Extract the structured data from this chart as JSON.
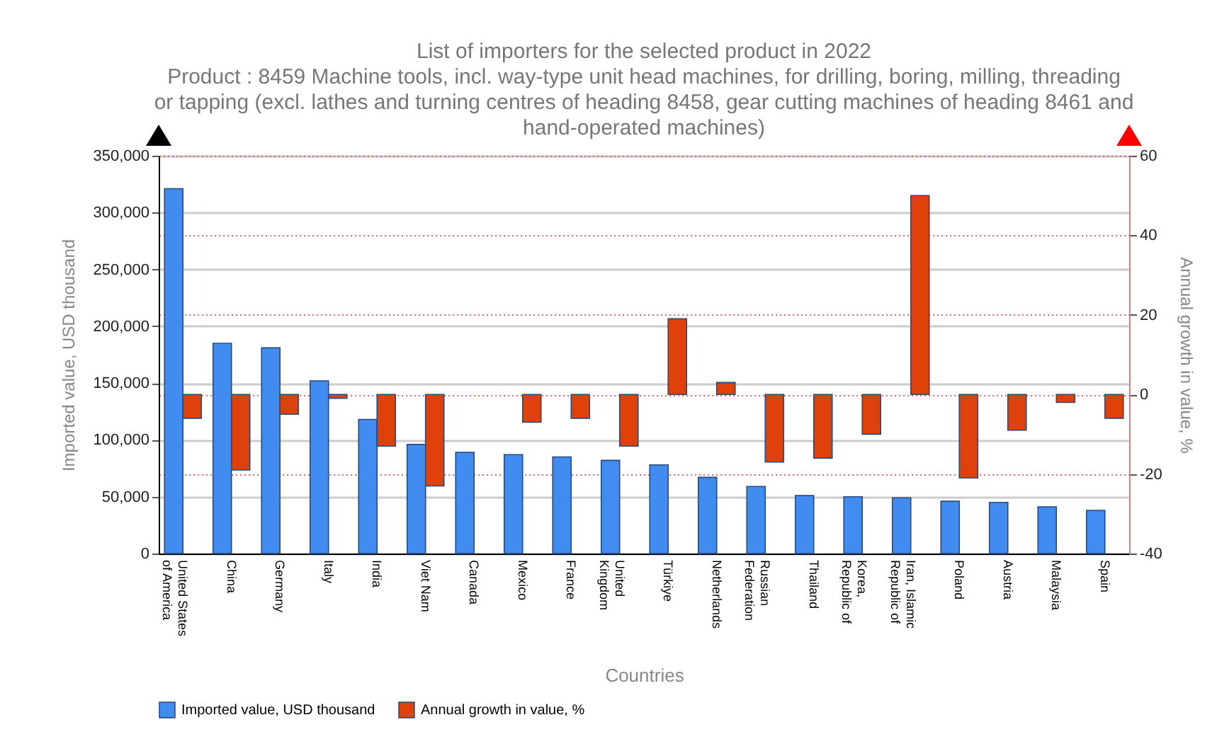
{
  "chart_data": {
    "type": "bar",
    "title": "List of importers for the selected product in 2022",
    "subtitle": "Product : 8459 Machine tools, incl. way-type unit head machines, for drilling, boring, milling, threading or tapping (excl. lathes and turning centres of heading 8458, gear cutting machines of heading 8461 and hand-operated machines)",
    "xlabel": "Countries",
    "ylabel": "Imported value, USD thousand",
    "y2label": "Annual growth in value, %",
    "categories": [
      "United States of America",
      "China",
      "Germany",
      "Italy",
      "India",
      "Viet Nam",
      "Canada",
      "Mexico",
      "France",
      "United Kingdom",
      "Türkiye",
      "Netherlands",
      "Russian Federation",
      "Thailand",
      "Korea, Republic of",
      "Iran, Islamic Republic of",
      "Poland",
      "Austria",
      "Malaysia",
      "Spain"
    ],
    "series": [
      {
        "name": "Imported value, USD thousand",
        "color": "#418cf0",
        "values": [
          321000,
          185000,
          181000,
          152000,
          118000,
          96000,
          89000,
          87000,
          85000,
          82000,
          78000,
          67000,
          59000,
          51000,
          50000,
          49000,
          46000,
          45000,
          41000,
          38000
        ]
      },
      {
        "name": "Annual growth in value, %",
        "color": "#e0400a",
        "axis": "y2",
        "values": [
          -6,
          -19,
          -5,
          -1,
          -13,
          -23,
          null,
          -7,
          -6,
          -13,
          19,
          3,
          -17,
          -16,
          -10,
          50,
          -21,
          -9,
          -2,
          -6
        ]
      }
    ],
    "ylim": [
      0,
      350000
    ],
    "yticks": [
      0,
      {
        "value": 50000,
        "label": "50,000"
      },
      {
        "value": 100000,
        "label": "100,000"
      },
      {
        "value": 150000,
        "label": "150,000"
      },
      {
        "value": 200000,
        "label": "200,000"
      },
      {
        "value": 250000,
        "label": "250,000"
      },
      {
        "value": 300000,
        "label": "300,000"
      },
      {
        "value": 350000,
        "label": "350,000"
      }
    ],
    "y2lim": [
      -40,
      60
    ],
    "y2ticks": [
      -40,
      -20,
      0,
      20,
      40,
      60
    ],
    "grid": true,
    "legend": "bottom"
  }
}
